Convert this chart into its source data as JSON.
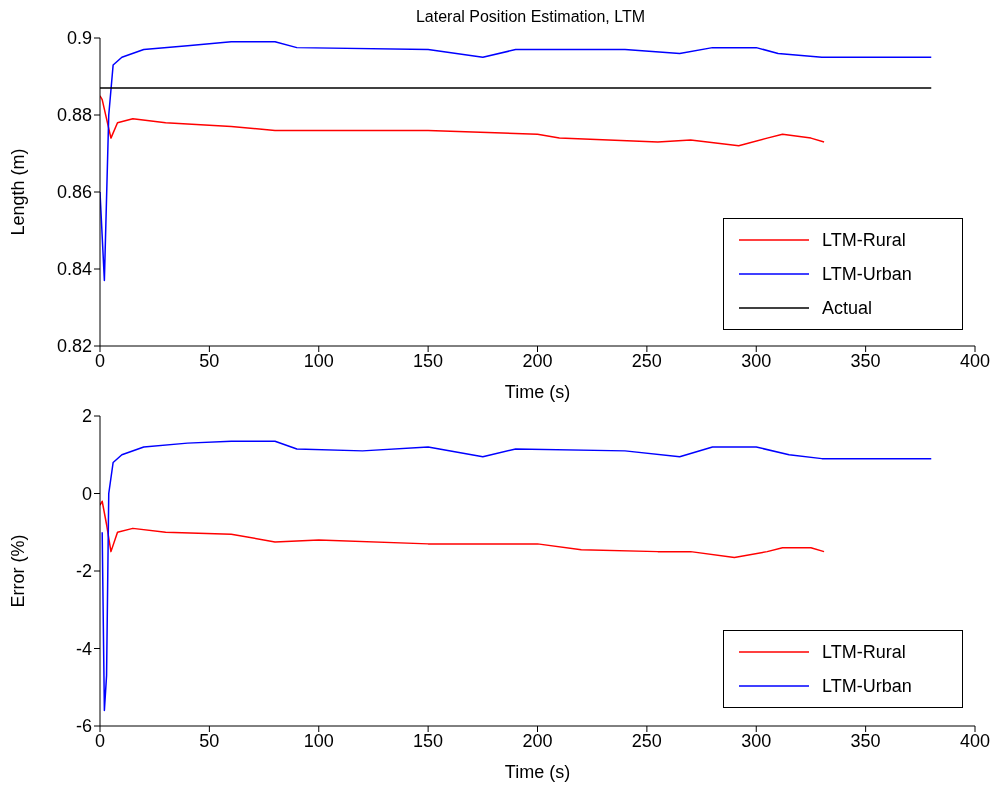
{
  "chart_data": [
    {
      "type": "line",
      "title": "Lateral Position Estimation, LTM",
      "xlabel": "Time (s)",
      "ylabel": "Length (m)",
      "xlim": [
        0,
        400
      ],
      "xticks": [
        0,
        50,
        100,
        150,
        200,
        250,
        300,
        350,
        400
      ],
      "ylim": [
        0.82,
        0.9
      ],
      "yticks": [
        0.82,
        0.84,
        0.86,
        0.88,
        0.9
      ],
      "legend": "bottom right",
      "series": [
        {
          "name": "LTM-Rural",
          "color": "#ff0000",
          "x": [
            0,
            1,
            3,
            5,
            8,
            15,
            30,
            60,
            80,
            150,
            200,
            210,
            255,
            270,
            292,
            305,
            312,
            325,
            331
          ],
          "values": [
            0.885,
            0.884,
            0.879,
            0.874,
            0.878,
            0.879,
            0.878,
            0.877,
            0.876,
            0.876,
            0.875,
            0.874,
            0.873,
            0.8735,
            0.872,
            0.874,
            0.875,
            0.874,
            0.873
          ]
        },
        {
          "name": "LTM-Urban",
          "color": "#0000ff",
          "x": [
            0,
            2,
            4,
            6,
            10,
            20,
            40,
            60,
            80,
            90,
            150,
            175,
            190,
            240,
            265,
            280,
            300,
            310,
            330,
            380
          ],
          "values": [
            0.86,
            0.837,
            0.88,
            0.893,
            0.895,
            0.897,
            0.898,
            0.899,
            0.899,
            0.8975,
            0.897,
            0.895,
            0.897,
            0.897,
            0.896,
            0.8975,
            0.8975,
            0.896,
            0.895,
            0.895
          ]
        },
        {
          "name": "Actual",
          "color": "#000000",
          "x": [
            0,
            380
          ],
          "values": [
            0.887,
            0.887
          ]
        }
      ]
    },
    {
      "type": "line",
      "xlabel": "Time (s)",
      "ylabel": "Error (%)",
      "xlim": [
        0,
        400
      ],
      "xticks": [
        0,
        50,
        100,
        150,
        200,
        250,
        300,
        350,
        400
      ],
      "ylim": [
        -6,
        2
      ],
      "yticks": [
        -6,
        -4,
        -2,
        0,
        2
      ],
      "legend": "bottom right",
      "series": [
        {
          "name": "LTM-Rural",
          "color": "#ff0000",
          "x": [
            0,
            1,
            3,
            5,
            8,
            15,
            30,
            60,
            80,
            100,
            150,
            200,
            220,
            255,
            270,
            290,
            305,
            312,
            325,
            331
          ],
          "values": [
            -0.3,
            -0.2,
            -0.8,
            -1.5,
            -1.0,
            -0.9,
            -1.0,
            -1.05,
            -1.25,
            -1.2,
            -1.3,
            -1.3,
            -1.45,
            -1.5,
            -1.5,
            -1.65,
            -1.5,
            -1.4,
            -1.4,
            -1.5
          ]
        },
        {
          "name": "LTM-Urban",
          "color": "#0000ff",
          "x": [
            1,
            2,
            3,
            4,
            6,
            10,
            20,
            40,
            60,
            80,
            90,
            120,
            150,
            175,
            190,
            240,
            265,
            280,
            300,
            315,
            330,
            380
          ],
          "values": [
            -1.0,
            -5.6,
            -4.7,
            0,
            0.8,
            1.0,
            1.2,
            1.3,
            1.35,
            1.35,
            1.15,
            1.1,
            1.2,
            0.95,
            1.15,
            1.1,
            0.95,
            1.2,
            1.2,
            1.0,
            0.9,
            0.9
          ]
        }
      ]
    }
  ]
}
